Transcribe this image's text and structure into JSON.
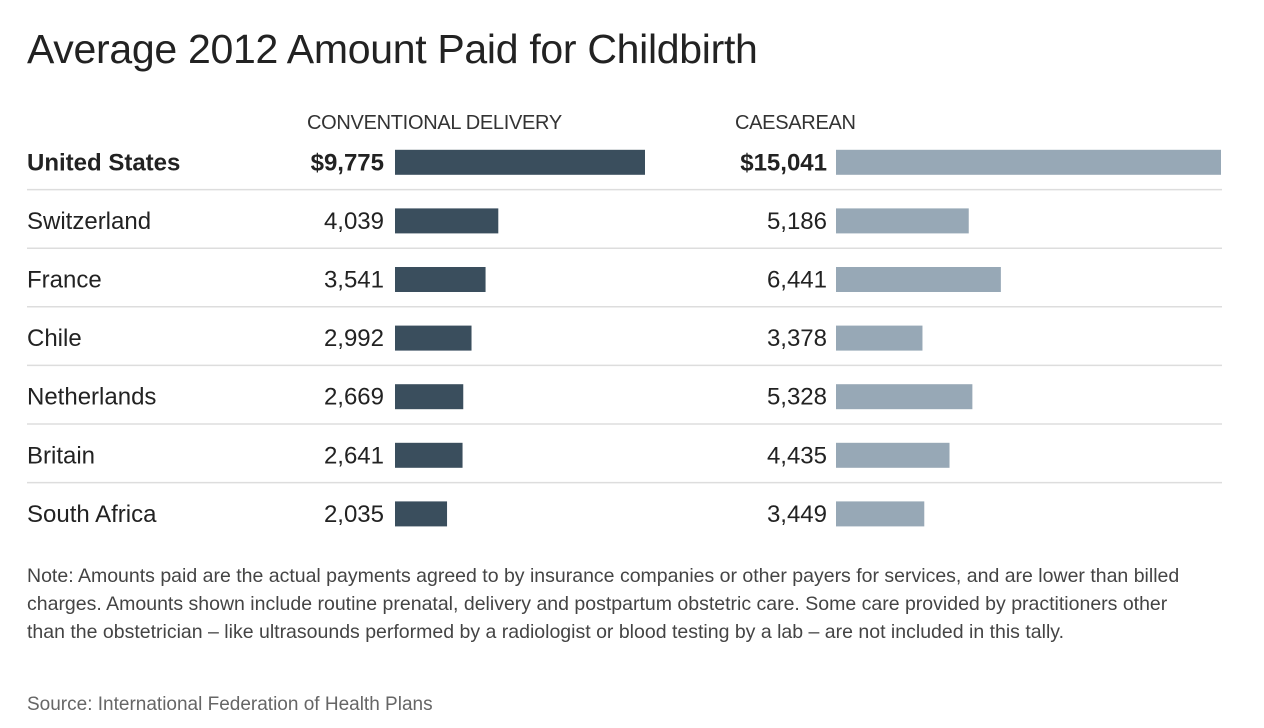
{
  "chart_data": {
    "type": "bar",
    "title": "Average 2012 Amount Paid for Childbirth",
    "categories": [
      "United States",
      "Switzerland",
      "France",
      "Chile",
      "Netherlands",
      "Britain",
      "South Africa"
    ],
    "highlight_category": "United States",
    "series": [
      {
        "name": "CONVENTIONAL DELIVERY",
        "values": [
          9775,
          4039,
          3541,
          2992,
          2669,
          2641,
          2035
        ],
        "labels": [
          "$9,775",
          "4,039",
          "3,541",
          "2,992",
          "2,669",
          "2,641",
          "2,035"
        ],
        "color": "#3a4e5d"
      },
      {
        "name": "CAESAREAN",
        "values": [
          15041,
          5186,
          6441,
          3378,
          5328,
          4435,
          3449
        ],
        "labels": [
          "$15,041",
          "5,186",
          "6,441",
          "3,378",
          "5,328",
          "4,435",
          "3,449"
        ],
        "color": "#97a8b6"
      }
    ],
    "row_divider_color": "#dddddd"
  },
  "note": "Note: Amounts paid are the actual payments agreed to by insurance companies or other payers for services, and are lower than billed charges. Amounts shown include routine prenatal, delivery and postpartum obstetric care. Some care provided by practitioners other than the obstetrician – like ultrasounds performed by a radiologist or blood testing by a lab – are not included in this tally.",
  "source": "Source: International Federation of Health Plans"
}
